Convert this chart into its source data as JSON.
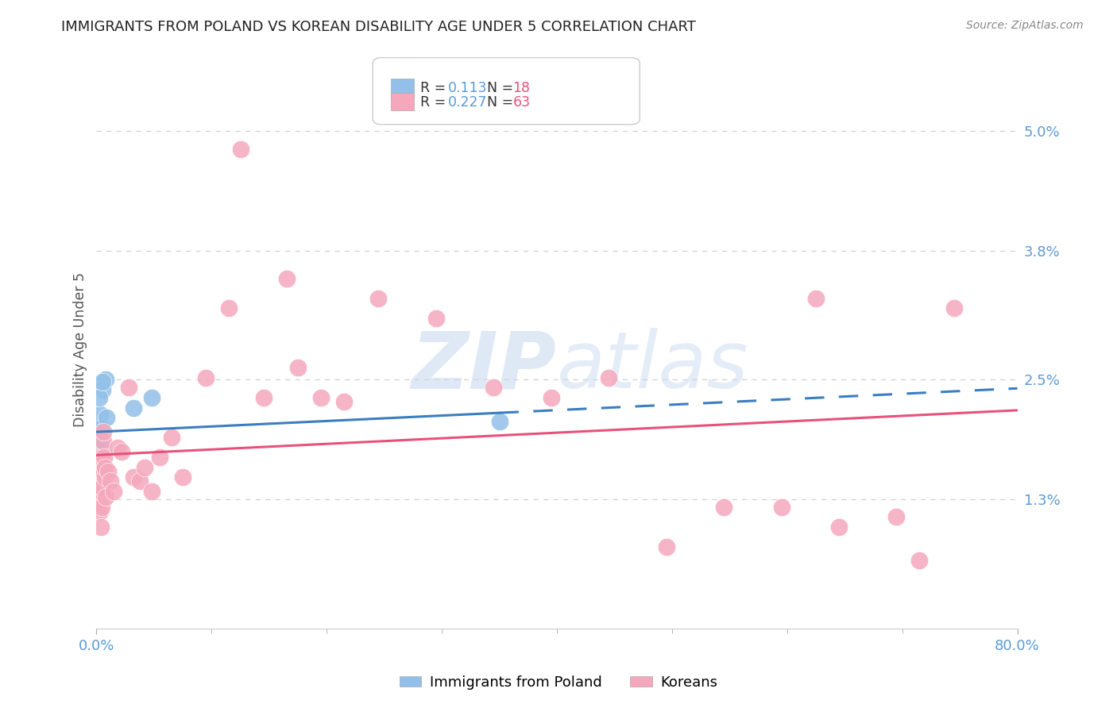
{
  "title": "IMMIGRANTS FROM POLAND VS KOREAN DISABILITY AGE UNDER 5 CORRELATION CHART",
  "source": "Source: ZipAtlas.com",
  "ylabel": "Disability Age Under 5",
  "ytick_values": [
    1.3,
    2.5,
    3.8,
    5.0
  ],
  "xlim": [
    0.0,
    80.0
  ],
  "ylim": [
    0.0,
    5.6
  ],
  "poland_color": "#92c0e8",
  "korean_color": "#f5a8bc",
  "poland_line_color": "#3b7ec0",
  "korean_line_color": "#e8527a",
  "watermark_zip_color": "#c5d8ef",
  "watermark_atlas_color": "#c5d8ef",
  "background_color": "#ffffff",
  "grid_color": "#d0d0d0",
  "title_color": "#222222",
  "tick_label_color": "#5b9bd5",
  "source_color": "#888888",
  "poland_r": "0.113",
  "poland_n": "18",
  "korean_r": "0.227",
  "korean_n": "63",
  "legend_r_n_color": "#5b9bd5",
  "legend_n_val_color": "#e8527a",
  "poland_points": [
    [
      0.3,
      2.15
    ],
    [
      0.8,
      2.5
    ],
    [
      0.5,
      2.4
    ],
    [
      0.2,
      1.95
    ],
    [
      0.35,
      2.02
    ],
    [
      0.15,
      1.72
    ],
    [
      0.12,
      1.58
    ],
    [
      0.08,
      1.42
    ],
    [
      0.04,
      1.52
    ],
    [
      0.06,
      1.88
    ],
    [
      0.25,
      2.32
    ],
    [
      0.55,
      2.48
    ],
    [
      3.2,
      2.22
    ],
    [
      4.8,
      2.32
    ],
    [
      0.22,
      1.32
    ],
    [
      0.48,
      1.82
    ],
    [
      0.85,
      2.12
    ],
    [
      35.0,
      2.08
    ]
  ],
  "korean_points": [
    [
      0.04,
      1.42
    ],
    [
      0.08,
      1.58
    ],
    [
      0.06,
      1.32
    ],
    [
      0.1,
      1.62
    ],
    [
      0.12,
      1.48
    ],
    [
      0.14,
      1.22
    ],
    [
      0.16,
      1.52
    ],
    [
      0.18,
      1.38
    ],
    [
      0.2,
      1.72
    ],
    [
      0.22,
      1.58
    ],
    [
      0.24,
      1.42
    ],
    [
      0.26,
      1.62
    ],
    [
      0.28,
      1.28
    ],
    [
      0.3,
      1.48
    ],
    [
      0.32,
      1.32
    ],
    [
      0.34,
      1.18
    ],
    [
      0.36,
      1.02
    ],
    [
      0.38,
      1.38
    ],
    [
      0.4,
      1.52
    ],
    [
      0.42,
      1.22
    ],
    [
      0.44,
      1.42
    ],
    [
      0.48,
      1.72
    ],
    [
      0.52,
      1.58
    ],
    [
      0.56,
      1.88
    ],
    [
      0.6,
      1.98
    ],
    [
      0.65,
      1.72
    ],
    [
      0.7,
      1.52
    ],
    [
      0.75,
      1.62
    ],
    [
      0.82,
      1.32
    ],
    [
      1.0,
      1.58
    ],
    [
      1.2,
      1.48
    ],
    [
      1.5,
      1.38
    ],
    [
      1.8,
      1.82
    ],
    [
      2.2,
      1.78
    ],
    [
      2.8,
      2.42
    ],
    [
      3.2,
      1.52
    ],
    [
      3.8,
      1.48
    ],
    [
      4.2,
      1.62
    ],
    [
      4.8,
      1.38
    ],
    [
      5.5,
      1.72
    ],
    [
      6.5,
      1.92
    ],
    [
      7.5,
      1.52
    ],
    [
      9.5,
      2.52
    ],
    [
      11.5,
      3.22
    ],
    [
      12.5,
      4.82
    ],
    [
      14.5,
      2.32
    ],
    [
      16.5,
      3.52
    ],
    [
      17.5,
      2.62
    ],
    [
      19.5,
      2.32
    ],
    [
      21.5,
      2.28
    ],
    [
      24.5,
      3.32
    ],
    [
      29.5,
      3.12
    ],
    [
      34.5,
      2.42
    ],
    [
      39.5,
      2.32
    ],
    [
      44.5,
      2.52
    ],
    [
      49.5,
      0.82
    ],
    [
      54.5,
      1.22
    ],
    [
      59.5,
      1.22
    ],
    [
      62.5,
      3.32
    ],
    [
      64.5,
      1.02
    ],
    [
      69.5,
      1.12
    ],
    [
      71.5,
      0.68
    ],
    [
      74.5,
      3.22
    ]
  ]
}
